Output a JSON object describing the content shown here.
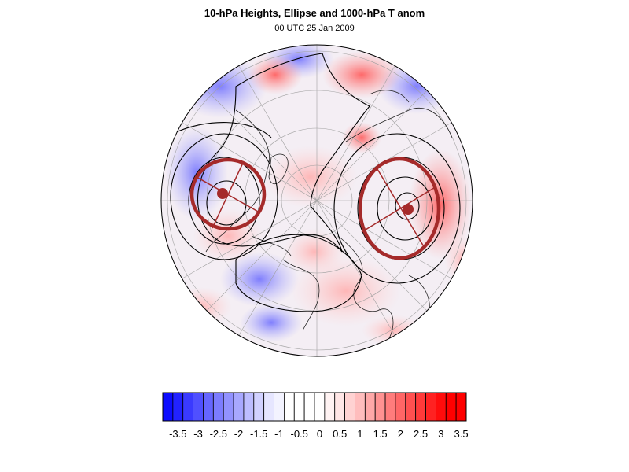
{
  "title": "10-hPa Heights, Ellipse and 1000-hPa T anom",
  "subtitle": "00 UTC 25 Jan 2009",
  "map": {
    "projection": "north-polar-stereographic",
    "colors": {
      "ellipse": "#a52a2a",
      "contour": "#000000",
      "coast": "#222222",
      "grid": "#999999"
    }
  },
  "colorbar": {
    "levels": [
      -3.75,
      -3.5,
      -3.25,
      -3,
      -2.75,
      -2.5,
      -2.25,
      -2,
      -1.75,
      -1.5,
      -1.25,
      -1,
      -0.75,
      -0.5,
      -0.25,
      0,
      0.25,
      0.5,
      0.75,
      1,
      1.25,
      1.5,
      1.75,
      2,
      2.25,
      2.5,
      2.75,
      3,
      3.25,
      3.5,
      3.75
    ],
    "tick_labels": [
      "-3.5",
      "-3",
      "-2.5",
      "-2",
      "-1.5",
      "-1",
      "-0.5",
      "0",
      "0.5",
      "1",
      "1.5",
      "2",
      "2.5",
      "3",
      "3.5"
    ],
    "tick_values": [
      -3.5,
      -3,
      -2.5,
      -2,
      -1.5,
      -1,
      -0.5,
      0,
      0.5,
      1,
      1.5,
      2,
      2.5,
      3,
      3.5
    ],
    "colors": [
      "#0c0cff",
      "#2222ff",
      "#3a3aff",
      "#5050ff",
      "#6666ff",
      "#7c7cff",
      "#9292ff",
      "#a8a8ff",
      "#bdbdff",
      "#d2d2ff",
      "#e6e6ff",
      "#f3f3ff",
      "#ffffff",
      "#ffffff",
      "#ffffff",
      "#ffffff",
      "#fff3f3",
      "#ffe6e6",
      "#ffd2d2",
      "#ffbdbd",
      "#ffa8a8",
      "#ff9292",
      "#ff7c7c",
      "#ff6666",
      "#ff5050",
      "#ff3a3a",
      "#ff2222",
      "#ff0c0c",
      "#ff0000",
      "#ff0000"
    ]
  }
}
